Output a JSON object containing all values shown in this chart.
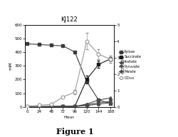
{
  "title": "KJ122",
  "xlabel": "Hour",
  "ylabel_left": "mM",
  "ylabel_right": "OD550",
  "x": [
    0,
    24,
    48,
    72,
    96,
    120,
    144,
    168
  ],
  "xylose": [
    460,
    455,
    450,
    445,
    400,
    185,
    50,
    25
  ],
  "succinate": [
    0,
    2,
    3,
    4,
    5,
    200,
    310,
    350
  ],
  "acetate": [
    0,
    1,
    2,
    3,
    4,
    20,
    50,
    65
  ],
  "pyruvate": [
    0,
    1,
    2,
    2,
    3,
    15,
    30,
    40
  ],
  "malate": [
    0,
    1,
    2,
    2,
    3,
    10,
    20,
    30
  ],
  "od": [
    0.05,
    0.1,
    0.15,
    0.6,
    0.9,
    4.0,
    3.2,
    2.9
  ],
  "od_err": [
    0.0,
    0.0,
    0.0,
    0.0,
    0.15,
    0.5,
    0.3,
    0.2
  ],
  "succinate_err": [
    0,
    0,
    0,
    0,
    0,
    30,
    25,
    15
  ],
  "xylose_color": "#3a3a3a",
  "succinate_color": "#1a1a1a",
  "acetate_color": "#4a4a4a",
  "pyruvate_color": "#4a4a4a",
  "malate_color": "#4a4a4a",
  "od_color": "#999999",
  "ylim_left": [
    0,
    600
  ],
  "ylim_right": [
    0,
    5
  ],
  "xticks": [
    0,
    24,
    48,
    72,
    96,
    120,
    144,
    168
  ],
  "yticks_left": [
    0,
    100,
    200,
    300,
    400,
    500,
    600
  ],
  "yticks_right": [
    0,
    1,
    2,
    3,
    4,
    5
  ],
  "figure_label": "Figure 1",
  "bg_color": "#ffffff"
}
